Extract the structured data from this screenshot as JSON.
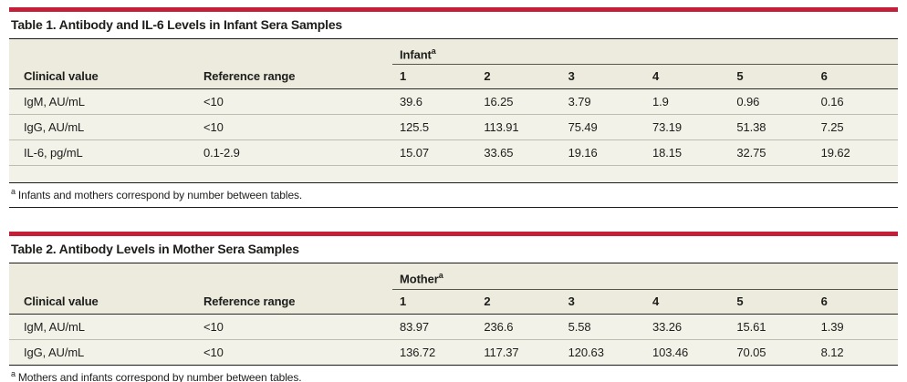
{
  "page": {
    "accent_red": "#C41E39",
    "header_band_color": "#EDEBDD",
    "row_band_color": "#F3F2E8"
  },
  "tables": [
    {
      "title": "Table 1. Antibody and IL-6 Levels in Infant Sera Samples",
      "group_label": "Infant",
      "group_sup": "a",
      "col_headers": [
        "Clinical value",
        "Reference range",
        "1",
        "2",
        "3",
        "4",
        "5",
        "6"
      ],
      "rows": [
        {
          "label": "IgM, AU/mL",
          "ref": "<10",
          "values": [
            "39.6",
            "16.25",
            "3.79",
            "1.9",
            "0.96",
            "0.16"
          ]
        },
        {
          "label": "IgG, AU/mL",
          "ref": "<10",
          "values": [
            "125.5",
            "113.91",
            "75.49",
            "73.19",
            "51.38",
            "7.25"
          ]
        },
        {
          "label": "IL-6, pg/mL",
          "ref": "0.1-2.9",
          "values": [
            "15.07",
            "33.65",
            "19.16",
            "18.15",
            "32.75",
            "19.62"
          ]
        }
      ],
      "footnote_sup": "a",
      "footnote_text": "Infants and mothers correspond by number between tables."
    },
    {
      "title": "Table 2. Antibody Levels in Mother Sera Samples",
      "group_label": "Mother",
      "group_sup": "a",
      "col_headers": [
        "Clinical value",
        "Reference range",
        "1",
        "2",
        "3",
        "4",
        "5",
        "6"
      ],
      "rows": [
        {
          "label": "IgM, AU/mL",
          "ref": "<10",
          "values": [
            "83.97",
            "236.6",
            "5.58",
            "33.26",
            "15.61",
            "1.39"
          ]
        },
        {
          "label": "IgG, AU/mL",
          "ref": "<10",
          "values": [
            "136.72",
            "117.37",
            "120.63",
            "103.46",
            "70.05",
            "8.12"
          ]
        }
      ],
      "footnote_sup": "a",
      "footnote_text": "Mothers and infants correspond by number between tables."
    }
  ]
}
